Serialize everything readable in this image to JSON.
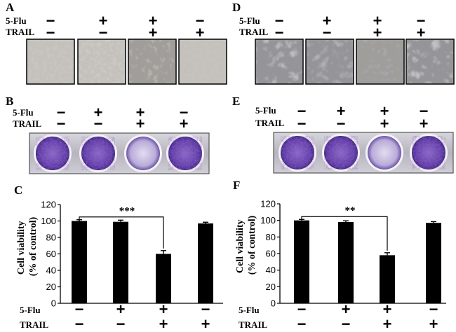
{
  "panels": {
    "A": "A",
    "B": "B",
    "C": "C",
    "D": "D",
    "E": "E",
    "F": "F"
  },
  "labels": {
    "flu": "5-Flu",
    "trail": "TRAIL"
  },
  "conditions": [
    {
      "flu": "−",
      "trail": "−"
    },
    {
      "flu": "+",
      "trail": "−"
    },
    {
      "flu": "+",
      "trail": "+"
    },
    {
      "flu": "−",
      "trail": "+"
    }
  ],
  "chart_data": [
    {
      "type": "bar",
      "panel": "C",
      "categories": [
        "5-Flu −/TRAIL −",
        "5-Flu +/TRAIL −",
        "5-Flu +/TRAIL +",
        "5-Flu −/TRAIL +"
      ],
      "values": [
        100,
        99,
        60,
        97
      ],
      "errors": [
        1.5,
        2,
        4,
        1.5
      ],
      "ylabel": "Cell viability (% of control)",
      "ylim": [
        0,
        120
      ],
      "yticks": [
        0,
        20,
        40,
        60,
        80,
        100,
        120
      ],
      "significance": {
        "from": 0,
        "to": 2,
        "label": "***"
      }
    },
    {
      "type": "bar",
      "panel": "F",
      "categories": [
        "5-Flu −/TRAIL −",
        "5-Flu +/TRAIL −",
        "5-Flu +/TRAIL +",
        "5-Flu −/TRAIL +"
      ],
      "values": [
        100,
        98,
        58,
        97
      ],
      "errors": [
        1.2,
        1.5,
        3,
        1.5
      ],
      "ylabel": "Cell viability (% of control)",
      "ylim": [
        0,
        120
      ],
      "yticks": [
        0,
        20,
        40,
        60,
        80,
        100,
        120
      ],
      "significance": {
        "from": 0,
        "to": 2,
        "label": "**"
      }
    }
  ]
}
